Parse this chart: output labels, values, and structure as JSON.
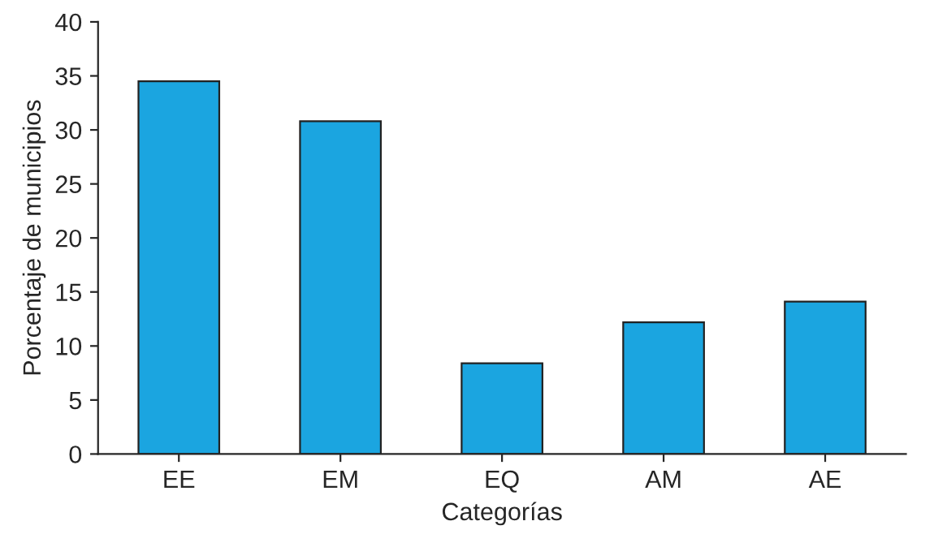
{
  "chart_data": {
    "type": "bar",
    "xlabel": "Categorías",
    "ylabel": "Porcentaje de municipios",
    "categories": [
      "EE",
      "EM",
      "EQ",
      "AM",
      "AE"
    ],
    "values": [
      34.5,
      30.8,
      8.4,
      12.2,
      14.1
    ],
    "color": "#1ba5e0",
    "ylim": [
      0,
      40
    ],
    "yticks": [
      0,
      5,
      10,
      15,
      20,
      25,
      30,
      35,
      40
    ],
    "grid": false
  }
}
